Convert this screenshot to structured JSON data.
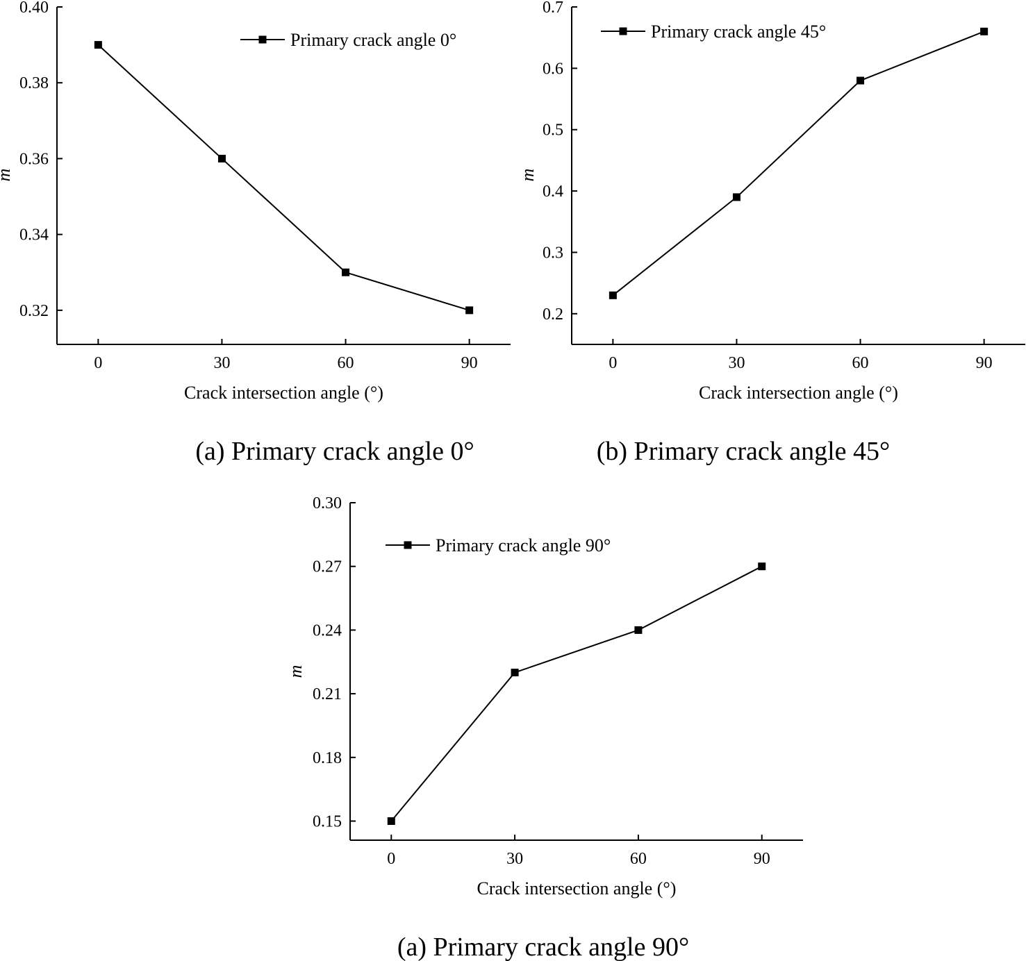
{
  "chart_data": [
    {
      "type": "line",
      "x": [
        0,
        30,
        60,
        90
      ],
      "series": [
        {
          "name": "Primary crack angle 0°",
          "values": [
            0.39,
            0.36,
            0.33,
            0.32
          ],
          "marker": "square"
        }
      ],
      "xlabel": "Crack intersection angle (°)",
      "ylabel": "m",
      "xticks": [
        "0",
        "30",
        "60",
        "90"
      ],
      "yticks": [
        "0.32",
        "0.34",
        "0.36",
        "0.38",
        "0.40"
      ],
      "xlim": [
        -10,
        100
      ],
      "ylim": [
        0.311,
        0.4
      ],
      "grid": false,
      "legend": "top-right",
      "caption": "(a) Primary crack angle 0°",
      "color": "#000000"
    },
    {
      "type": "line",
      "x": [
        0,
        30,
        60,
        90
      ],
      "series": [
        {
          "name": "Primary crack angle 45°",
          "values": [
            0.23,
            0.39,
            0.58,
            0.66
          ],
          "marker": "square"
        }
      ],
      "xlabel": "Crack intersection angle (°)",
      "ylabel": "m",
      "xticks": [
        "0",
        "30",
        "60",
        "90"
      ],
      "yticks": [
        "0.2",
        "0.3",
        "0.4",
        "0.5",
        "0.6",
        "0.7"
      ],
      "xlim": [
        -10,
        100
      ],
      "ylim": [
        0.15,
        0.7
      ],
      "grid": false,
      "legend": "top-left",
      "caption": "(b) Primary crack angle 45°",
      "color": "#000000"
    },
    {
      "type": "line",
      "x": [
        0,
        30,
        60,
        90
      ],
      "series": [
        {
          "name": "Primary crack angle 90°",
          "values": [
            0.15,
            0.22,
            0.24,
            0.27
          ],
          "marker": "square"
        }
      ],
      "xlabel": "Crack intersection angle (°)",
      "ylabel": "m",
      "xticks": [
        "0",
        "30",
        "60",
        "90"
      ],
      "yticks": [
        "0.15",
        "0.18",
        "0.21",
        "0.24",
        "0.27",
        "0.30"
      ],
      "xlim": [
        -10,
        100
      ],
      "ylim": [
        0.141,
        0.3
      ],
      "grid": false,
      "legend": "top-left",
      "caption": "(a) Primary crack angle 90°",
      "color": "#000000"
    }
  ]
}
